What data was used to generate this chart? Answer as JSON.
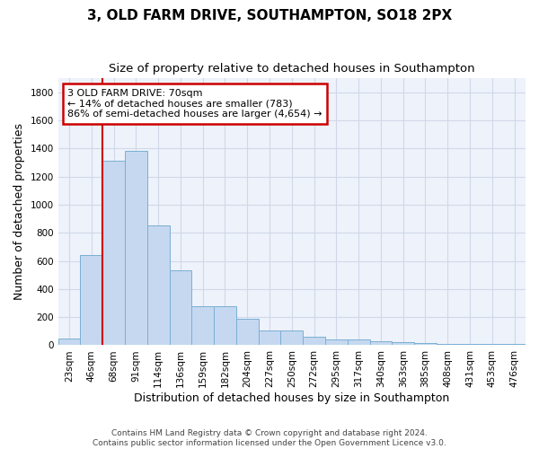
{
  "title": "3, OLD FARM DRIVE, SOUTHAMPTON, SO18 2PX",
  "subtitle": "Size of property relative to detached houses in Southampton",
  "xlabel": "Distribution of detached houses by size in Southampton",
  "ylabel": "Number of detached properties",
  "footer_line1": "Contains HM Land Registry data © Crown copyright and database right 2024.",
  "footer_line2": "Contains public sector information licensed under the Open Government Licence v3.0.",
  "categories": [
    "23sqm",
    "46sqm",
    "68sqm",
    "91sqm",
    "114sqm",
    "136sqm",
    "159sqm",
    "182sqm",
    "204sqm",
    "227sqm",
    "250sqm",
    "272sqm",
    "295sqm",
    "317sqm",
    "340sqm",
    "363sqm",
    "385sqm",
    "408sqm",
    "431sqm",
    "453sqm",
    "476sqm"
  ],
  "values": [
    50,
    640,
    1310,
    1380,
    850,
    530,
    275,
    275,
    185,
    105,
    105,
    60,
    40,
    40,
    30,
    20,
    15,
    12,
    12,
    8,
    8
  ],
  "bar_color": "#c5d8f0",
  "bar_edge_color": "#7aafd4",
  "vline_x": 1.5,
  "vline_color": "#cc0000",
  "annotation_line1": "3 OLD FARM DRIVE: 70sqm",
  "annotation_line2": "← 14% of detached houses are smaller (783)",
  "annotation_line3": "86% of semi-detached houses are larger (4,654) →",
  "annotation_box_color": "#cc0000",
  "ylim": [
    0,
    1900
  ],
  "yticks": [
    0,
    200,
    400,
    600,
    800,
    1000,
    1200,
    1400,
    1600,
    1800
  ],
  "grid_color": "#d0d8e8",
  "bg_color": "#eef2fa",
  "title_fontsize": 11,
  "subtitle_fontsize": 9.5,
  "xlabel_fontsize": 9,
  "ylabel_fontsize": 9,
  "tick_fontsize": 7.5,
  "annotation_fontsize": 8,
  "footer_fontsize": 6.5
}
